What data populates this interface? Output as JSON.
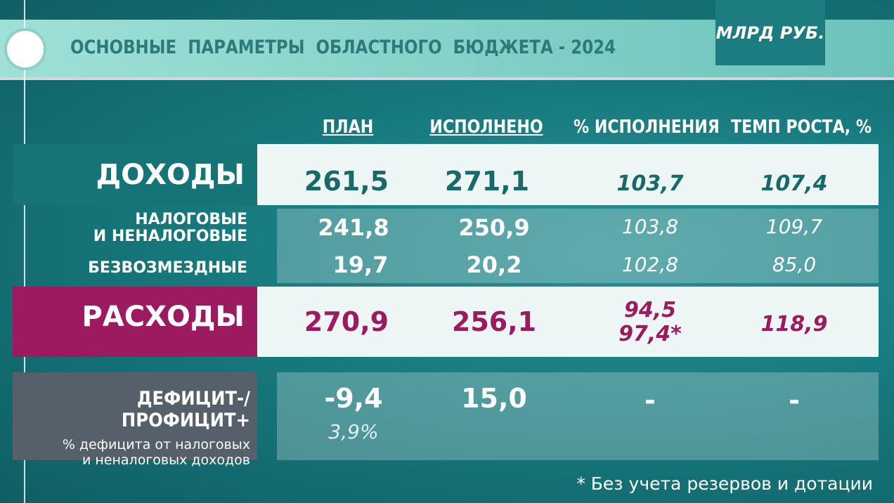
{
  "header": {
    "title": "ОСНОВНЫЕ  ПАРАМЕТРЫ  ОБЛАСТНОГО  БЮДЖЕТА - 2024",
    "unit": "МЛРД РУБ."
  },
  "columns": [
    "ПЛАН",
    "ИСПОЛНЕНО",
    "% ИСПОЛНЕНИЯ",
    "ТЕМП РОСТА, %"
  ],
  "rows": [
    {
      "label": "ДОХОДЫ",
      "plan": "261,5",
      "done": "271,1",
      "pct": "103,7",
      "growth": "107,4"
    },
    {
      "label": [
        "НАЛОГОВЫЕ",
        "И НЕНАЛОГОВЫЕ"
      ],
      "plan": "241,8",
      "done": "250,9",
      "pct": "103,8",
      "growth": "109,7"
    },
    {
      "label": "БЕЗВОЗМЕЗДНЫЕ",
      "plan": "19,7",
      "done": "20,2",
      "pct": "102,8",
      "growth": "85,0"
    },
    {
      "label": "РАСХОДЫ",
      "plan": "270,9",
      "done": "256,1",
      "pct": [
        "94,5",
        "97,4*"
      ],
      "growth": "118,9"
    },
    {
      "label": "ДЕФИЦИТ-/ПРОФИЦИТ+",
      "sublabel": [
        "% дефицита от налоговых",
        "и неналоговых доходов"
      ],
      "plan": "-9,4",
      "plan_sub": "3,9%",
      "done": "15,0",
      "pct": "-",
      "growth": "-"
    }
  ],
  "footnote": "* Без учета резервов и дотации"
}
